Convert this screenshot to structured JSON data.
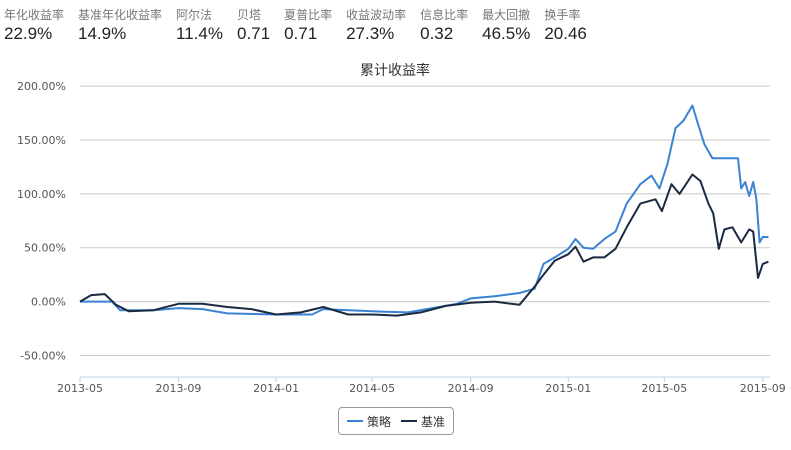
{
  "stats": [
    {
      "label": "年化收益率",
      "value": "22.9%"
    },
    {
      "label": "基准年化收益率",
      "value": "14.9%"
    },
    {
      "label": "阿尔法",
      "value": "11.4%"
    },
    {
      "label": "贝塔",
      "value": "0.71"
    },
    {
      "label": "夏普比率",
      "value": "0.71"
    },
    {
      "label": "收益波动率",
      "value": "27.3%"
    },
    {
      "label": "信息比率",
      "value": "0.32"
    },
    {
      "label": "最大回撤",
      "value": "46.5%"
    },
    {
      "label": "换手率",
      "value": "20.46"
    }
  ],
  "chart_data": {
    "type": "line",
    "title": "累计收益率",
    "ylim": [
      -70,
      215
    ],
    "xlim": [
      "2013-05-01",
      "2015-09-10"
    ],
    "yticks": [
      -50,
      0,
      50,
      100,
      150,
      200
    ],
    "ytick_labels": [
      "-50.00%",
      "0.00%",
      "50.00%",
      "100.00%",
      "150.00%",
      "200.00%"
    ],
    "xticks": [
      "2013-05-01",
      "2013-09-01",
      "2014-01-01",
      "2014-05-01",
      "2014-09-01",
      "2015-01-01",
      "2015-05-01",
      "2015-09-01"
    ],
    "xtick_labels": [
      "2013-05",
      "2013-09",
      "2014-01",
      "2014-05",
      "2014-09",
      "2015-01",
      "2015-05",
      "2015-09"
    ],
    "grid": true,
    "legend_position": "bottom",
    "series": [
      {
        "name": "策略",
        "color": "#3a82d4",
        "points": [
          [
            "2013-05-01",
            0
          ],
          [
            "2013-06-10",
            0
          ],
          [
            "2013-06-20",
            -8
          ],
          [
            "2013-08-01",
            -8
          ],
          [
            "2013-09-01",
            -6
          ],
          [
            "2013-10-01",
            -7
          ],
          [
            "2013-11-01",
            -11
          ],
          [
            "2014-01-01",
            -12
          ],
          [
            "2014-02-15",
            -12
          ],
          [
            "2014-03-01",
            -7
          ],
          [
            "2014-05-01",
            -9
          ],
          [
            "2014-06-15",
            -10
          ],
          [
            "2014-07-15",
            -6
          ],
          [
            "2014-08-15",
            -2
          ],
          [
            "2014-09-01",
            3
          ],
          [
            "2014-10-01",
            5
          ],
          [
            "2014-11-01",
            8
          ],
          [
            "2014-11-20",
            12
          ],
          [
            "2014-12-01",
            35
          ],
          [
            "2014-12-15",
            41
          ],
          [
            "2015-01-01",
            49
          ],
          [
            "2015-01-10",
            58
          ],
          [
            "2015-01-20",
            50
          ],
          [
            "2015-02-01",
            49
          ],
          [
            "2015-02-15",
            58
          ],
          [
            "2015-03-01",
            65
          ],
          [
            "2015-03-15",
            91
          ],
          [
            "2015-04-01",
            109
          ],
          [
            "2015-04-15",
            117
          ],
          [
            "2015-04-25",
            105
          ],
          [
            "2015-05-05",
            128
          ],
          [
            "2015-05-15",
            161
          ],
          [
            "2015-05-25",
            168
          ],
          [
            "2015-06-05",
            182
          ],
          [
            "2015-06-12",
            165
          ],
          [
            "2015-06-20",
            146
          ],
          [
            "2015-06-30",
            133
          ],
          [
            "2015-08-01",
            133
          ],
          [
            "2015-08-05",
            105
          ],
          [
            "2015-08-10",
            111
          ],
          [
            "2015-08-15",
            98
          ],
          [
            "2015-08-20",
            111
          ],
          [
            "2015-08-24",
            95
          ],
          [
            "2015-08-28",
            55
          ],
          [
            "2015-09-01",
            60
          ],
          [
            "2015-09-08",
            60
          ]
        ]
      },
      {
        "name": "基准",
        "color": "#1a2a40",
        "points": [
          [
            "2013-05-01",
            0
          ],
          [
            "2013-05-15",
            6
          ],
          [
            "2013-06-01",
            7
          ],
          [
            "2013-06-15",
            -3
          ],
          [
            "2013-07-01",
            -9
          ],
          [
            "2013-08-01",
            -8
          ],
          [
            "2013-09-01",
            -2
          ],
          [
            "2013-10-01",
            -2
          ],
          [
            "2013-11-01",
            -5
          ],
          [
            "2013-12-01",
            -7
          ],
          [
            "2014-01-01",
            -12
          ],
          [
            "2014-02-01",
            -10
          ],
          [
            "2014-03-01",
            -5
          ],
          [
            "2014-04-01",
            -12
          ],
          [
            "2014-05-01",
            -12
          ],
          [
            "2014-06-01",
            -13
          ],
          [
            "2014-07-01",
            -10
          ],
          [
            "2014-08-01",
            -4
          ],
          [
            "2014-09-01",
            -1
          ],
          [
            "2014-10-01",
            0
          ],
          [
            "2014-11-01",
            -3
          ],
          [
            "2014-11-20",
            14
          ],
          [
            "2014-12-01",
            25
          ],
          [
            "2014-12-15",
            38
          ],
          [
            "2015-01-01",
            44
          ],
          [
            "2015-01-10",
            51
          ],
          [
            "2015-01-20",
            37
          ],
          [
            "2015-02-01",
            41
          ],
          [
            "2015-02-15",
            41
          ],
          [
            "2015-03-01",
            49
          ],
          [
            "2015-03-15",
            69
          ],
          [
            "2015-04-01",
            91
          ],
          [
            "2015-04-20",
            95
          ],
          [
            "2015-04-28",
            84
          ],
          [
            "2015-05-10",
            109
          ],
          [
            "2015-05-20",
            100
          ],
          [
            "2015-06-05",
            118
          ],
          [
            "2015-06-15",
            112
          ],
          [
            "2015-06-25",
            91
          ],
          [
            "2015-07-01",
            82
          ],
          [
            "2015-07-08",
            49
          ],
          [
            "2015-07-15",
            67
          ],
          [
            "2015-07-25",
            69
          ],
          [
            "2015-08-05",
            55
          ],
          [
            "2015-08-15",
            67
          ],
          [
            "2015-08-20",
            65
          ],
          [
            "2015-08-26",
            22
          ],
          [
            "2015-09-01",
            35
          ],
          [
            "2015-09-08",
            37
          ]
        ]
      }
    ]
  }
}
